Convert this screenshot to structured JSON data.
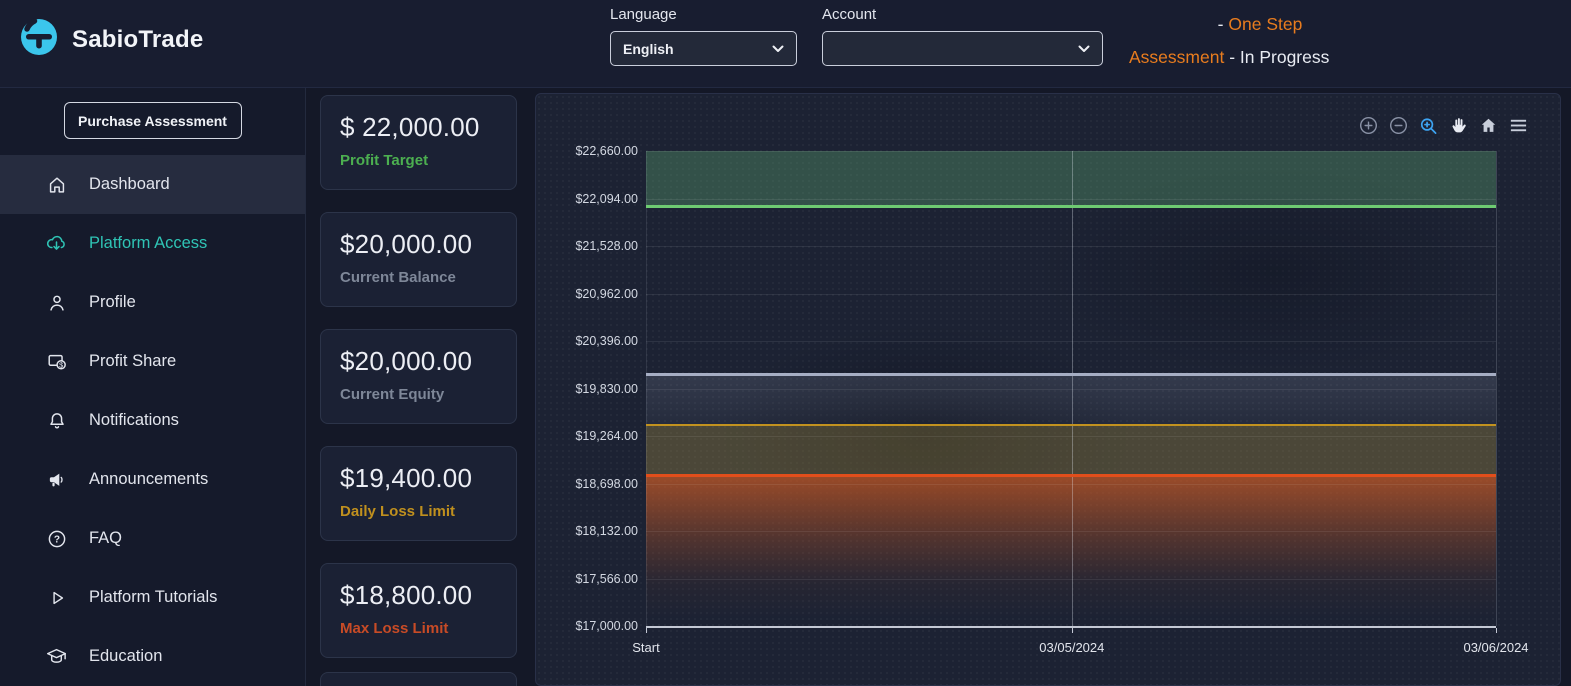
{
  "header": {
    "brand": "SabioTrade",
    "language": {
      "label": "Language",
      "value": "English"
    },
    "account": {
      "label": "Account",
      "value": ""
    },
    "status": {
      "program_full": "One Step Assessment",
      "state": "In Progress",
      "line1_dash": "-",
      "line1_program": "One Step",
      "line2_program": "Assessment",
      "line2_rest": "- In Progress"
    }
  },
  "sidebar": {
    "purchase_button": "Purchase Assessment",
    "items": [
      {
        "label": "Dashboard",
        "icon": "home-icon",
        "active": true
      },
      {
        "label": "Platform Access",
        "icon": "cloud-download-icon",
        "accent": true
      },
      {
        "label": "Profile",
        "icon": "person-icon"
      },
      {
        "label": "Profit Share",
        "icon": "profit-share-icon"
      },
      {
        "label": "Notifications",
        "icon": "bell-icon"
      },
      {
        "label": "Announcements",
        "icon": "megaphone-icon"
      },
      {
        "label": "FAQ",
        "icon": "question-icon"
      },
      {
        "label": "Platform Tutorials",
        "icon": "play-icon"
      },
      {
        "label": "Education",
        "icon": "graduation-cap-icon"
      }
    ]
  },
  "stats": [
    {
      "value": "$ 22,000.00",
      "label": "Profit Target",
      "color": "#4caf50"
    },
    {
      "value": "$20,000.00",
      "label": "Current Balance",
      "color": "#7e8798"
    },
    {
      "value": "$20,000.00",
      "label": "Current Equity",
      "color": "#7e8798"
    },
    {
      "value": "$19,400.00",
      "label": "Daily Loss Limit",
      "color": "#c0901e"
    },
    {
      "value": "$18,800.00",
      "label": "Max Loss Limit",
      "color": "#c84b26"
    }
  ],
  "chart": {
    "toolbar_icons": [
      "zoom-in",
      "zoom-out",
      "selection-zoom",
      "pan",
      "home",
      "menu"
    ],
    "y_ticks": [
      "$22,660.00",
      "$22,094.00",
      "$21,528.00",
      "$20,962.00",
      "$20,396.00",
      "$19,830.00",
      "$19,264.00",
      "$18,698.00",
      "$18,132.00",
      "$17,566.00",
      "$17,000.00"
    ],
    "x_ticks": [
      {
        "label": "Start",
        "pos": 0
      },
      {
        "label": "03/05/2024",
        "pos": 0.501
      },
      {
        "label": "03/06/2024",
        "pos": 1
      }
    ]
  },
  "chart_data": {
    "type": "line",
    "title": "",
    "x": [
      "Start",
      "03/05/2024",
      "03/06/2024"
    ],
    "series": [
      {
        "name": "Current Balance",
        "values": [
          20000,
          20000,
          20000
        ],
        "color": "#a6aec4"
      },
      {
        "name": "Current Equity",
        "values": [
          20000,
          20000,
          20000
        ],
        "color": "#a6aec4"
      }
    ],
    "ylim": [
      17000,
      22660
    ],
    "y_tick_values": [
      22660,
      22094,
      21528,
      20962,
      20396,
      19830,
      19264,
      18698,
      18132,
      17566,
      17000
    ],
    "grid": true,
    "legend": false,
    "thresholds": [
      {
        "name": "Profit Target",
        "value": 22000,
        "color": "#6ecb72",
        "kind": "profit"
      },
      {
        "name": "Balance / Equity",
        "value": 20000,
        "color": "#a6aec4",
        "kind": "balance"
      },
      {
        "name": "Daily Loss Limit",
        "value": 19400,
        "color": "#c2921f",
        "kind": "warning"
      },
      {
        "name": "Max Loss Limit",
        "value": 18800,
        "color": "#e24e1b",
        "kind": "danger"
      }
    ],
    "bands": [
      {
        "from": 22660,
        "to": 22000,
        "kind": "profit"
      },
      {
        "from": 20000,
        "to": 19400,
        "kind": "neutral"
      },
      {
        "from": 19400,
        "to": 18800,
        "kind": "warning"
      },
      {
        "from": 18800,
        "to": 17000,
        "kind": "danger"
      }
    ]
  },
  "colors": {
    "accent_teal": "#2fc4b5",
    "brand_cyan": "#3bc6ec",
    "status_orange": "#e87c1e",
    "profit_green": "#6ecb72",
    "balance_gray": "#a6aec4",
    "warning_gold": "#c2921f",
    "danger_orange": "#e24e1b"
  }
}
